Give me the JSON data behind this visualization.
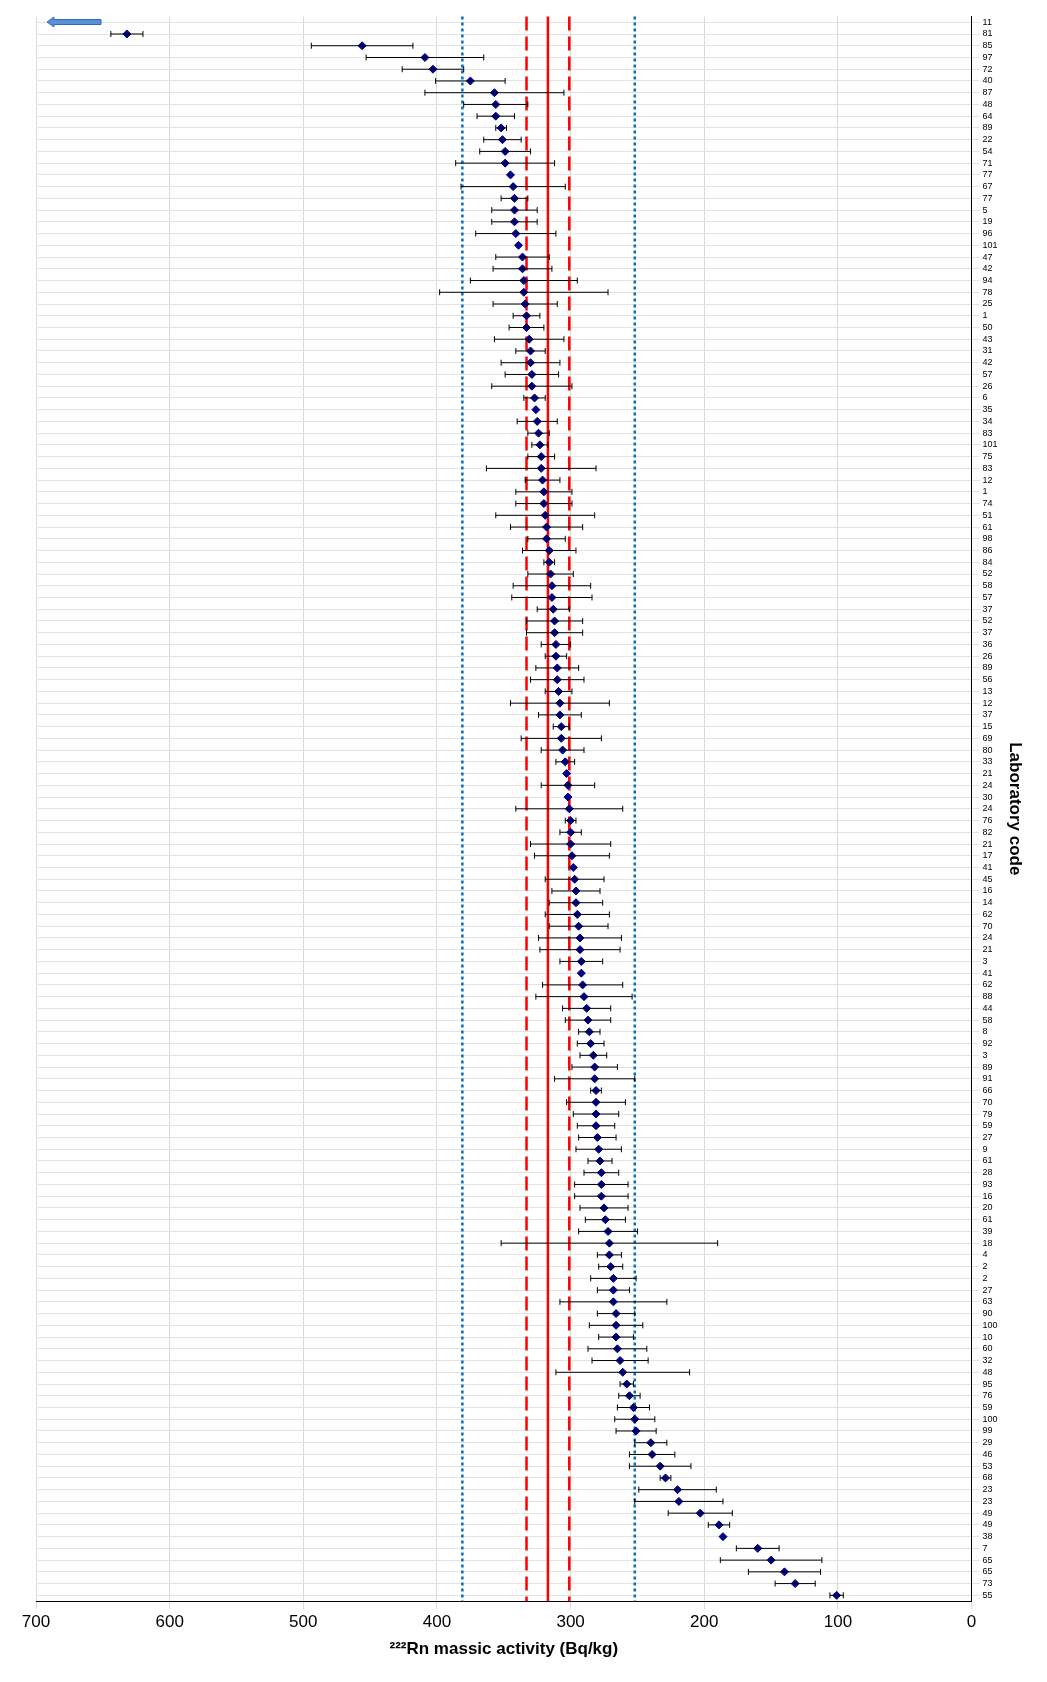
{
  "chart_data": {
    "type": "scatter",
    "orientation": "horizontal",
    "xlabel": "²²²Rn massic activity (Bq/kg)",
    "ylabel": "Laboratory code",
    "categories": [
      "11",
      "81",
      "85",
      "97",
      "72",
      "40",
      "87",
      "48",
      "64",
      "89",
      "22",
      "54",
      "71",
      "77",
      "67",
      "77",
      "5",
      "19",
      "96",
      "101",
      "47",
      "42",
      "94",
      "78",
      "25",
      "1",
      "50",
      "43",
      "31",
      "42",
      "57",
      "26",
      "6",
      "35",
      "34",
      "83",
      "101",
      "75",
      "83",
      "12",
      "1",
      "74",
      "51",
      "61",
      "98",
      "86",
      "84",
      "52",
      "58",
      "57",
      "37",
      "52",
      "37",
      "36",
      "26",
      "89",
      "56",
      "13",
      "12",
      "37",
      "15",
      "69",
      "80",
      "33",
      "21",
      "24",
      "30",
      "24",
      "76",
      "82",
      "21",
      "17",
      "41",
      "45",
      "16",
      "14",
      "62",
      "70",
      "24",
      "21",
      "3",
      "41",
      "62",
      "88",
      "44",
      "58",
      "8",
      "92",
      "3",
      "89",
      "91",
      "66",
      "70",
      "79",
      "59",
      "27",
      "9",
      "61",
      "28",
      "93",
      "16",
      "20",
      "61",
      "39",
      "18",
      "4",
      "2",
      "2",
      "27",
      "63",
      "90",
      "100",
      "10",
      "60",
      "32",
      "48",
      "95",
      "76",
      "59",
      "100",
      "99",
      "29",
      "46",
      "53",
      "68",
      "23",
      "23",
      "49",
      "49",
      "38",
      "7",
      "65",
      "65",
      "73",
      "55"
    ],
    "values": [
      null,
      632,
      456,
      409,
      403,
      375,
      357,
      356,
      356,
      352,
      351,
      349,
      349,
      345,
      343,
      342,
      342,
      342,
      341,
      339,
      336,
      336,
      335,
      335,
      334,
      333,
      333,
      331,
      330,
      330,
      329,
      329,
      327,
      326,
      325,
      324,
      323,
      322,
      322,
      321,
      320,
      320,
      319,
      318,
      318,
      316,
      316,
      315,
      314,
      314,
      313,
      312,
      312,
      311,
      311,
      310,
      310,
      309,
      308,
      308,
      307,
      307,
      306,
      304,
      303,
      302,
      302,
      301,
      300,
      300,
      300,
      299,
      298,
      297,
      296,
      296,
      295,
      294,
      293,
      293,
      292,
      292,
      291,
      290,
      288,
      287,
      286,
      285,
      283,
      282,
      282,
      281,
      281,
      281,
      281,
      280,
      279,
      278,
      277,
      277,
      277,
      275,
      274,
      272,
      271,
      271,
      270,
      268,
      268,
      268,
      266,
      266,
      266,
      265,
      263,
      261,
      258,
      256,
      253,
      252,
      251,
      240,
      239,
      233,
      229,
      220,
      219,
      203,
      189,
      186,
      160,
      150,
      140,
      132,
      101
    ],
    "errors": [
      null,
      12,
      38,
      44,
      23,
      26,
      52,
      24,
      14,
      4,
      14,
      19,
      37,
      null,
      39,
      10,
      17,
      17,
      30,
      null,
      20,
      22,
      40,
      63,
      24,
      10,
      13,
      26,
      11,
      22,
      20,
      30,
      8,
      null,
      15,
      8,
      6,
      10,
      41,
      13,
      21,
      21,
      37,
      27,
      14,
      20,
      4,
      17,
      29,
      30,
      12,
      21,
      21,
      11,
      8,
      16,
      20,
      10,
      37,
      16,
      6,
      30,
      16,
      7,
      null,
      20,
      null,
      40,
      4,
      8,
      30,
      28,
      null,
      22,
      18,
      20,
      24,
      22,
      31,
      30,
      16,
      null,
      30,
      36,
      18,
      17,
      8,
      10,
      10,
      17,
      30,
      4,
      22,
      17,
      14,
      14,
      17,
      9,
      13,
      20,
      20,
      18,
      15,
      22,
      81,
      9,
      9,
      17,
      12,
      40,
      14,
      20,
      13,
      22,
      21,
      50,
      5,
      8,
      12,
      15,
      15,
      12,
      17,
      23,
      4,
      29,
      33,
      24,
      8,
      null,
      16,
      38,
      27,
      15,
      5
    ],
    "color": "#00008b",
    "marker": "diamond",
    "xlim": [
      700,
      0
    ],
    "xticks": [
      0,
      100,
      200,
      300,
      400,
      500,
      600,
      700
    ],
    "grid": true,
    "legend": false,
    "ref_lines": [
      {
        "axis": "x",
        "value": 317,
        "color": "#ff0000",
        "line_style": "solid"
      },
      {
        "axis": "x",
        "value": 301,
        "color": "#ff0000",
        "line_style": "dashed"
      },
      {
        "axis": "x",
        "value": 333,
        "color": "#ff0000",
        "line_style": "dashed"
      },
      {
        "axis": "x",
        "value": 252,
        "color": "#0070c0",
        "line_style": "dotted"
      },
      {
        "axis": "x",
        "value": 381,
        "color": "#0070c0",
        "line_style": "dotted"
      }
    ]
  }
}
